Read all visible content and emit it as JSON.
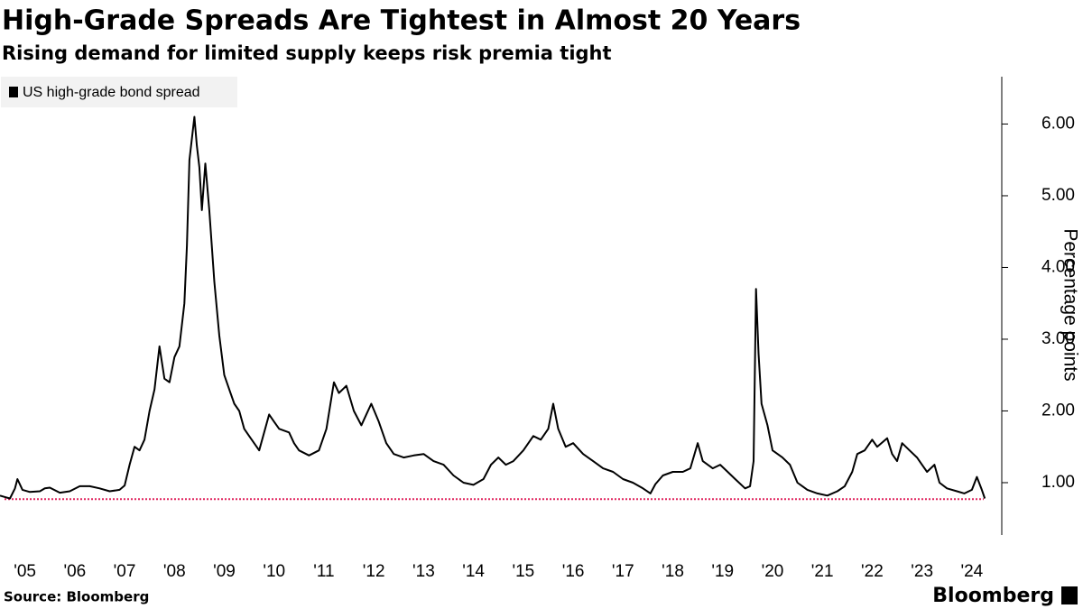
{
  "chart_data": {
    "type": "line",
    "title": "High-Grade Spreads Are Tightest in Almost 20 Years",
    "subtitle": "Rising demand for limited supply keeps risk premia tight",
    "y_label": "Percentage points",
    "source": "Source: Bloomberg",
    "brand": "Bloomberg",
    "x": [
      2005.0,
      2005.1,
      2005.2,
      2005.3,
      2005.35,
      2005.45,
      2005.6,
      2005.8,
      2005.9,
      2006.0,
      2006.2,
      2006.4,
      2006.6,
      2006.8,
      2007.0,
      2007.2,
      2007.4,
      2007.5,
      2007.6,
      2007.7,
      2007.8,
      2007.9,
      2008.0,
      2008.1,
      2008.2,
      2008.3,
      2008.4,
      2008.5,
      2008.6,
      2008.7,
      2008.75,
      2008.8,
      2008.9,
      2008.95,
      2009.0,
      2009.05,
      2009.12,
      2009.2,
      2009.3,
      2009.4,
      2009.5,
      2009.6,
      2009.7,
      2009.8,
      2009.9,
      2010.0,
      2010.1,
      2010.2,
      2010.3,
      2010.4,
      2010.5,
      2010.6,
      2010.8,
      2010.9,
      2011.0,
      2011.2,
      2011.4,
      2011.55,
      2011.7,
      2011.8,
      2011.95,
      2012.1,
      2012.25,
      2012.35,
      2012.45,
      2012.6,
      2012.75,
      2012.9,
      2013.1,
      2013.3,
      2013.5,
      2013.7,
      2013.9,
      2014.1,
      2014.3,
      2014.5,
      2014.7,
      2014.85,
      2015.0,
      2015.15,
      2015.3,
      2015.5,
      2015.7,
      2015.85,
      2016.0,
      2016.1,
      2016.2,
      2016.35,
      2016.5,
      2016.7,
      2016.9,
      2017.1,
      2017.3,
      2017.5,
      2017.7,
      2017.9,
      2018.05,
      2018.15,
      2018.3,
      2018.5,
      2018.7,
      2018.85,
      2019.0,
      2019.1,
      2019.3,
      2019.45,
      2019.6,
      2019.75,
      2019.95,
      2020.05,
      2020.12,
      2020.17,
      2020.22,
      2020.28,
      2020.4,
      2020.5,
      2020.7,
      2020.85,
      2021.0,
      2021.2,
      2021.4,
      2021.6,
      2021.8,
      2021.95,
      2022.1,
      2022.2,
      2022.35,
      2022.5,
      2022.6,
      2022.8,
      2022.9,
      2023.0,
      2023.1,
      2023.25,
      2023.4,
      2023.5,
      2023.6,
      2023.75,
      2023.85,
      2024.0,
      2024.2,
      2024.35,
      2024.5,
      2024.6,
      2024.7,
      2024.76
    ],
    "series": [
      {
        "name": "US high-grade bond spread",
        "color": "#000000",
        "values": [
          0.82,
          0.8,
          0.78,
          0.92,
          1.05,
          0.9,
          0.87,
          0.88,
          0.92,
          0.93,
          0.86,
          0.88,
          0.95,
          0.95,
          0.92,
          0.88,
          0.9,
          0.96,
          1.25,
          1.5,
          1.45,
          1.6,
          2.0,
          2.3,
          2.9,
          2.45,
          2.4,
          2.75,
          2.9,
          3.5,
          4.3,
          5.5,
          6.1,
          5.7,
          5.4,
          4.8,
          5.45,
          4.8,
          3.8,
          3.05,
          2.5,
          2.3,
          2.1,
          2.0,
          1.75,
          1.65,
          1.55,
          1.45,
          1.7,
          1.95,
          1.85,
          1.75,
          1.7,
          1.55,
          1.45,
          1.38,
          1.45,
          1.75,
          2.4,
          2.25,
          2.35,
          2.0,
          1.8,
          1.95,
          2.1,
          1.85,
          1.55,
          1.4,
          1.35,
          1.38,
          1.4,
          1.3,
          1.25,
          1.1,
          1.0,
          0.97,
          1.05,
          1.25,
          1.35,
          1.25,
          1.3,
          1.45,
          1.65,
          1.6,
          1.75,
          2.1,
          1.75,
          1.5,
          1.55,
          1.4,
          1.3,
          1.2,
          1.15,
          1.05,
          1.0,
          0.92,
          0.85,
          0.98,
          1.1,
          1.15,
          1.15,
          1.2,
          1.55,
          1.3,
          1.2,
          1.25,
          1.15,
          1.05,
          0.92,
          0.95,
          1.3,
          3.7,
          2.8,
          2.1,
          1.8,
          1.45,
          1.35,
          1.25,
          1.0,
          0.9,
          0.85,
          0.82,
          0.88,
          0.95,
          1.15,
          1.4,
          1.45,
          1.6,
          1.5,
          1.62,
          1.4,
          1.3,
          1.55,
          1.45,
          1.35,
          1.25,
          1.15,
          1.25,
          1.0,
          0.92,
          0.88,
          0.85,
          0.9,
          1.08,
          0.9,
          0.78
        ]
      }
    ],
    "reference_line": {
      "value": 0.77,
      "color": "#e0245e"
    },
    "xlim": [
      2005.0,
      2025.1
    ],
    "xticks": [
      {
        "value": 2005.5,
        "label": "'05"
      },
      {
        "value": 2006.5,
        "label": "'06"
      },
      {
        "value": 2007.5,
        "label": "'07"
      },
      {
        "value": 2008.5,
        "label": "'08"
      },
      {
        "value": 2009.5,
        "label": "'09"
      },
      {
        "value": 2010.5,
        "label": "'10"
      },
      {
        "value": 2011.5,
        "label": "'11"
      },
      {
        "value": 2012.5,
        "label": "'12"
      },
      {
        "value": 2013.5,
        "label": "'13"
      },
      {
        "value": 2014.5,
        "label": "'14"
      },
      {
        "value": 2015.5,
        "label": "'15"
      },
      {
        "value": 2016.5,
        "label": "'16"
      },
      {
        "value": 2017.5,
        "label": "'17"
      },
      {
        "value": 2018.5,
        "label": "'18"
      },
      {
        "value": 2019.5,
        "label": "'19"
      },
      {
        "value": 2020.5,
        "label": "'20"
      },
      {
        "value": 2021.5,
        "label": "'21"
      },
      {
        "value": 2022.5,
        "label": "'22"
      },
      {
        "value": 2023.5,
        "label": "'23"
      },
      {
        "value": 2024.5,
        "label": "'24"
      }
    ],
    "ylim": [
      0.27,
      6.66
    ],
    "yticks": [
      {
        "value": 1,
        "label": "1.00"
      },
      {
        "value": 2,
        "label": "2.00"
      },
      {
        "value": 3,
        "label": "3.00"
      },
      {
        "value": 4,
        "label": "4.00"
      },
      {
        "value": 5,
        "label": "5.00"
      },
      {
        "value": 6,
        "label": "6.00"
      }
    ]
  }
}
